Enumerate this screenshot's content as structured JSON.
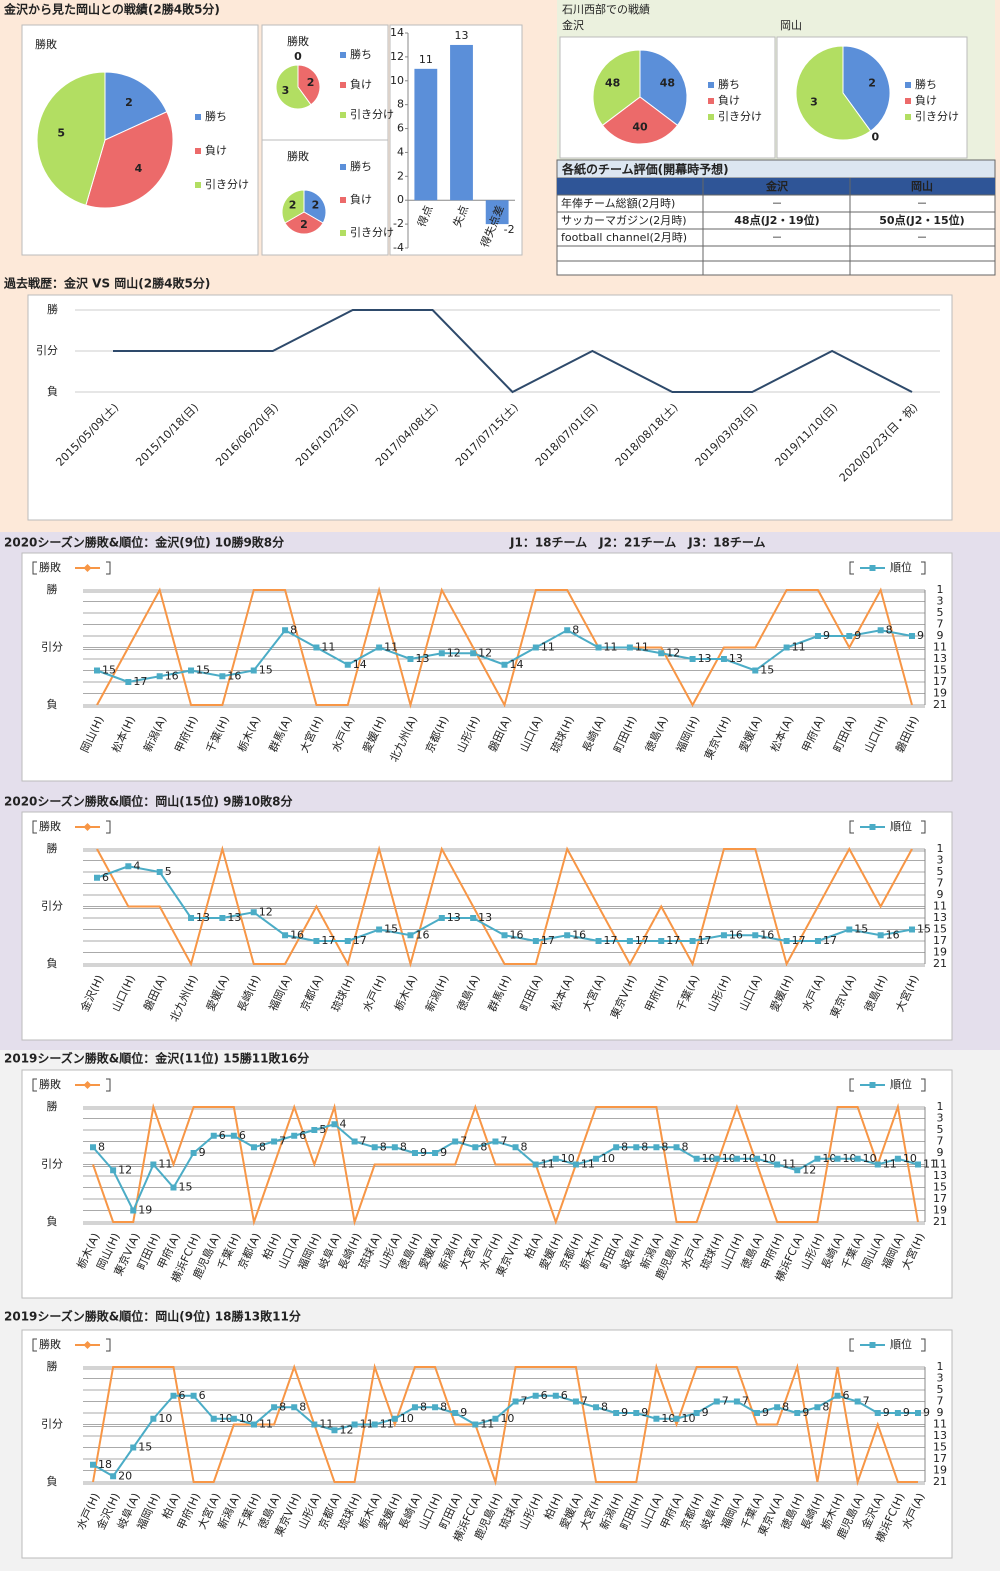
{
  "header": {
    "title": "金沢から見た岡山との戦績(2勝4敗5分)"
  },
  "ishikawa": {
    "title": "石川西部での戦績"
  },
  "table": {
    "title": "各紙のチーム評価(開幕時予想)",
    "header": [
      "金沢",
      "岡山"
    ],
    "rows": [
      [
        "年俸チーム総額(2月時)",
        "－",
        "－"
      ],
      [
        "サッカーマガジン(2月時)",
        "48点(J2・19位)",
        "50点(J2・15位)"
      ],
      [
        "football channel(2月時)",
        "－",
        "－"
      ]
    ]
  },
  "chart_data": [
    {
      "type": "pie",
      "title": "勝敗",
      "categories": [
        "勝ち",
        "負け",
        "引き分け"
      ],
      "values": [
        2,
        4,
        5
      ],
      "colors": [
        "#5b8fd9",
        "#ec6a6a",
        "#b2de62"
      ]
    },
    {
      "type": "pie",
      "title": "勝敗",
      "categories": [
        "勝ち",
        "負け",
        "引き分け"
      ],
      "values": [
        0,
        2,
        3
      ],
      "colors": [
        "#5b8fd9",
        "#ec6a6a",
        "#b2de62"
      ]
    },
    {
      "type": "pie",
      "title": "勝敗",
      "categories": [
        "勝ち",
        "負け",
        "引き分け"
      ],
      "values": [
        2,
        2,
        2
      ],
      "colors": [
        "#5b8fd9",
        "#ec6a6a",
        "#b2de62"
      ]
    },
    {
      "type": "bar",
      "categories": [
        "得点",
        "失点",
        "得失点差"
      ],
      "values": [
        11,
        13,
        -2
      ],
      "color": "#5b8fd9",
      "ylim": [
        -4,
        14
      ],
      "yticks": [
        -4,
        -2,
        0,
        2,
        4,
        6,
        8,
        10,
        12,
        14
      ],
      "grid": false
    },
    {
      "type": "pie",
      "title": "金沢",
      "categories": [
        "勝ち",
        "負け",
        "引き分け"
      ],
      "values": [
        48,
        40,
        48
      ],
      "colors": [
        "#5b8fd9",
        "#ec6a6a",
        "#b2de62"
      ]
    },
    {
      "type": "pie",
      "title": "岡山",
      "categories": [
        "勝ち",
        "負け",
        "引き分け"
      ],
      "values": [
        2,
        0,
        3
      ],
      "colors": [
        "#5b8fd9",
        "#ec6a6a",
        "#b2de62"
      ]
    },
    {
      "type": "line",
      "title": "過去戦歴：金沢 VS 岡山(2勝4敗5分)",
      "color": "#2e4a6b",
      "grid": true,
      "categories": [
        "2015/05/09(土)",
        "2015/10/18(日)",
        "2016/06/20(月)",
        "2016/10/23(日)",
        "2017/04/08(土)",
        "2017/07/15(土)",
        "2018/07/01(日)",
        "2018/08/18(土)",
        "2019/03/03(日)",
        "2019/11/10(日)",
        "2020/02/23(日・祝)"
      ],
      "values": [
        1,
        1,
        1,
        2,
        2,
        0,
        1,
        0,
        0,
        1,
        0
      ],
      "ylim": [
        0,
        2
      ],
      "yticks": [
        {
          "value": 0,
          "label": "負"
        },
        {
          "value": 1,
          "label": "引分"
        },
        {
          "value": 2,
          "label": "勝"
        }
      ]
    },
    {
      "type": "combo",
      "title": "2020シーズン勝敗&順位：金沢(9位) 10勝9敗8分",
      "annotation": "J1：18チーム　J2：21チーム　J3：18チーム",
      "grid": true,
      "categories": [
        "岡山(H)",
        "松本(H)",
        "新潟(A)",
        "甲府(H)",
        "千葉(H)",
        "栃木(A)",
        "群馬(A)",
        "大宮(H)",
        "水戸(A)",
        "愛媛(H)",
        "北九州(A)",
        "京都(H)",
        "山形(H)",
        "磐田(A)",
        "山口(A)",
        "琉球(H)",
        "長崎(A)",
        "町田(H)",
        "徳島(A)",
        "福岡(H)",
        "東京V(H)",
        "愛媛(A)",
        "松本(A)",
        "甲府(A)",
        "町田(A)",
        "山口(H)",
        "磐田(H)"
      ],
      "series": [
        {
          "name": "勝敗",
          "color": "#f79646",
          "values": [
            0,
            1,
            2,
            0,
            0,
            2,
            2,
            0,
            0,
            2,
            0,
            2,
            1,
            0,
            2,
            2,
            1,
            1,
            1,
            0,
            1,
            1,
            2,
            2,
            1,
            2,
            0
          ]
        },
        {
          "name": "順位",
          "color": "#4bacc6",
          "axis": "y2",
          "values": [
            15,
            17,
            16,
            15,
            16,
            15,
            8,
            11,
            14,
            11,
            13,
            12,
            12,
            14,
            11,
            8,
            11,
            11,
            12,
            13,
            13,
            15,
            11,
            9,
            9,
            8,
            9
          ]
        }
      ],
      "ylim": [
        0,
        2
      ],
      "yticks": [
        {
          "value": 0,
          "label": "負"
        },
        {
          "value": 1,
          "label": "引分"
        },
        {
          "value": 2,
          "label": "勝"
        }
      ],
      "y2lim": [
        21,
        1
      ],
      "y2ticks": [
        1,
        3,
        5,
        7,
        9,
        11,
        13,
        15,
        17,
        19,
        21
      ]
    },
    {
      "type": "combo",
      "title": "2020シーズン勝敗&順位：岡山(15位) 9勝10敗8分",
      "grid": true,
      "categories": [
        "金沢(H)",
        "山口(H)",
        "磐田(A)",
        "北九州(H)",
        "愛媛(A)",
        "長崎(H)",
        "福岡(A)",
        "京都(A)",
        "琉球(H)",
        "水戸(H)",
        "栃木(A)",
        "新潟(H)",
        "徳島(A)",
        "群馬(H)",
        "町田(A)",
        "松本(A)",
        "大宮(A)",
        "東京V(H)",
        "甲府(H)",
        "千葉(A)",
        "山形(H)",
        "山口(A)",
        "愛媛(H)",
        "水戸(A)",
        "東京V(A)",
        "徳島(H)",
        "大宮(H)"
      ],
      "series": [
        {
          "name": "勝敗",
          "color": "#f79646",
          "values": [
            2,
            1,
            1,
            0,
            2,
            0,
            0,
            1,
            0,
            2,
            0,
            2,
            1,
            0,
            0,
            2,
            1,
            0,
            1,
            0,
            2,
            2,
            0,
            1,
            2,
            1,
            2
          ]
        },
        {
          "name": "順位",
          "color": "#4bacc6",
          "axis": "y2",
          "values": [
            6,
            4,
            5,
            13,
            13,
            12,
            16,
            17,
            17,
            15,
            16,
            13,
            13,
            16,
            17,
            16,
            17,
            17,
            17,
            17,
            16,
            16,
            17,
            17,
            15,
            16,
            15
          ]
        }
      ],
      "ylim": [
        0,
        2
      ],
      "yticks": [
        {
          "value": 0,
          "label": "負"
        },
        {
          "value": 1,
          "label": "引分"
        },
        {
          "value": 2,
          "label": "勝"
        }
      ],
      "y2lim": [
        21,
        1
      ],
      "y2ticks": [
        1,
        3,
        5,
        7,
        9,
        11,
        13,
        15,
        17,
        19,
        21
      ]
    },
    {
      "type": "combo",
      "title": "2019シーズン勝敗&順位：金沢(11位) 15勝11敗16分",
      "grid": true,
      "categories": [
        "栃木(A)",
        "岡山(H)",
        "東京V(A)",
        "町田(H)",
        "甲府(A)",
        "横浜FC(H)",
        "鹿児島(A)",
        "千葉(H)",
        "京都(A)",
        "柏(H)",
        "山口(A)",
        "福岡(H)",
        "岐阜(A)",
        "長崎(H)",
        "琉球(A)",
        "山形(A)",
        "徳島(H)",
        "愛媛(A)",
        "新潟(H)",
        "大宮(A)",
        "水戸(H)",
        "東京V(H)",
        "柏(A)",
        "愛媛(H)",
        "京都(H)",
        "栃木(H)",
        "町田(A)",
        "岐阜(H)",
        "新潟(A)",
        "鹿児島(H)",
        "水戸(A)",
        "琉球(H)",
        "山口(H)",
        "徳島(A)",
        "甲府(H)",
        "横浜FC(A)",
        "山形(H)",
        "長崎(A)",
        "千葉(A)",
        "岡山(A)",
        "福岡(A)",
        "大宮(H)"
      ],
      "series": [
        {
          "name": "勝敗",
          "color": "#f79646",
          "values": [
            1,
            0,
            0,
            2,
            1,
            2,
            2,
            2,
            0,
            1,
            2,
            1,
            2,
            0,
            1,
            1,
            1,
            1,
            1,
            2,
            1,
            1,
            1,
            0,
            1,
            2,
            2,
            2,
            2,
            0,
            0,
            1,
            2,
            1,
            0,
            0,
            0,
            2,
            2,
            1,
            2,
            0
          ]
        },
        {
          "name": "順位",
          "color": "#4bacc6",
          "axis": "y2",
          "values": [
            8,
            12,
            19,
            11,
            15,
            9,
            6,
            6,
            8,
            7,
            6,
            5,
            4,
            7,
            8,
            8,
            9,
            9,
            7,
            8,
            7,
            8,
            11,
            10,
            11,
            10,
            8,
            8,
            8,
            8,
            10,
            10,
            10,
            10,
            11,
            12,
            10,
            10,
            10,
            11,
            10,
            11
          ]
        }
      ],
      "ylim": [
        0,
        2
      ],
      "yticks": [
        {
          "value": 0,
          "label": "負"
        },
        {
          "value": 1,
          "label": "引分"
        },
        {
          "value": 2,
          "label": "勝"
        }
      ],
      "y2lim": [
        21,
        1
      ],
      "y2ticks": [
        1,
        3,
        5,
        7,
        9,
        11,
        13,
        15,
        17,
        19,
        21
      ]
    },
    {
      "type": "combo",
      "title": "2019シーズン勝敗&順位：岡山(9位) 18勝13敗11分",
      "grid": true,
      "categories": [
        "水戸(H)",
        "金沢(H)",
        "岐阜(A)",
        "福岡(H)",
        "柏(A)",
        "甲府(H)",
        "大宮(A)",
        "新潟(A)",
        "千葉(H)",
        "徳島(A)",
        "東京V(H)",
        "山形(A)",
        "京都(A)",
        "琉球(H)",
        "栃木(A)",
        "愛媛(H)",
        "長崎(A)",
        "山口(H)",
        "町田(A)",
        "横浜FC(A)",
        "鹿児島(H)",
        "琉球(A)",
        "山形(H)",
        "柏(H)",
        "愛媛(A)",
        "大宮(H)",
        "新潟(H)",
        "町田(H)",
        "山口(A)",
        "甲府(A)",
        "京都(H)",
        "岐阜(H)",
        "福岡(A)",
        "千葉(A)",
        "東京V(A)",
        "徳島(H)",
        "長崎(H)",
        "栃木(H)",
        "鹿児島(A)",
        "金沢(A)",
        "横浜FC(H)",
        "水戸(A)"
      ],
      "series": [
        {
          "name": "勝敗",
          "color": "#f79646",
          "values": [
            0,
            2,
            2,
            2,
            2,
            0,
            0,
            1,
            1,
            1,
            2,
            1,
            0,
            0,
            2,
            1,
            2,
            2,
            1,
            1,
            0,
            2,
            2,
            2,
            2,
            0,
            0,
            0,
            2,
            1,
            2,
            2,
            2,
            1,
            1,
            2,
            0,
            2,
            0,
            1,
            0,
            0
          ]
        },
        {
          "name": "順位",
          "color": "#4bacc6",
          "axis": "y2",
          "values": [
            18,
            20,
            15,
            10,
            6,
            6,
            10,
            10,
            11,
            8,
            8,
            11,
            12,
            11,
            11,
            10,
            8,
            8,
            9,
            11,
            10,
            7,
            6,
            6,
            7,
            8,
            9,
            9,
            10,
            10,
            9,
            7,
            7,
            9,
            8,
            9,
            8,
            6,
            7,
            9,
            9,
            9
          ]
        }
      ],
      "ylim": [
        0,
        2
      ],
      "yticks": [
        {
          "value": 0,
          "label": "負"
        },
        {
          "value": 1,
          "label": "引分"
        },
        {
          "value": 2,
          "label": "勝"
        }
      ],
      "y2lim": [
        21,
        1
      ],
      "y2ticks": [
        1,
        3,
        5,
        7,
        9,
        11,
        13,
        15,
        17,
        19,
        21
      ]
    }
  ]
}
